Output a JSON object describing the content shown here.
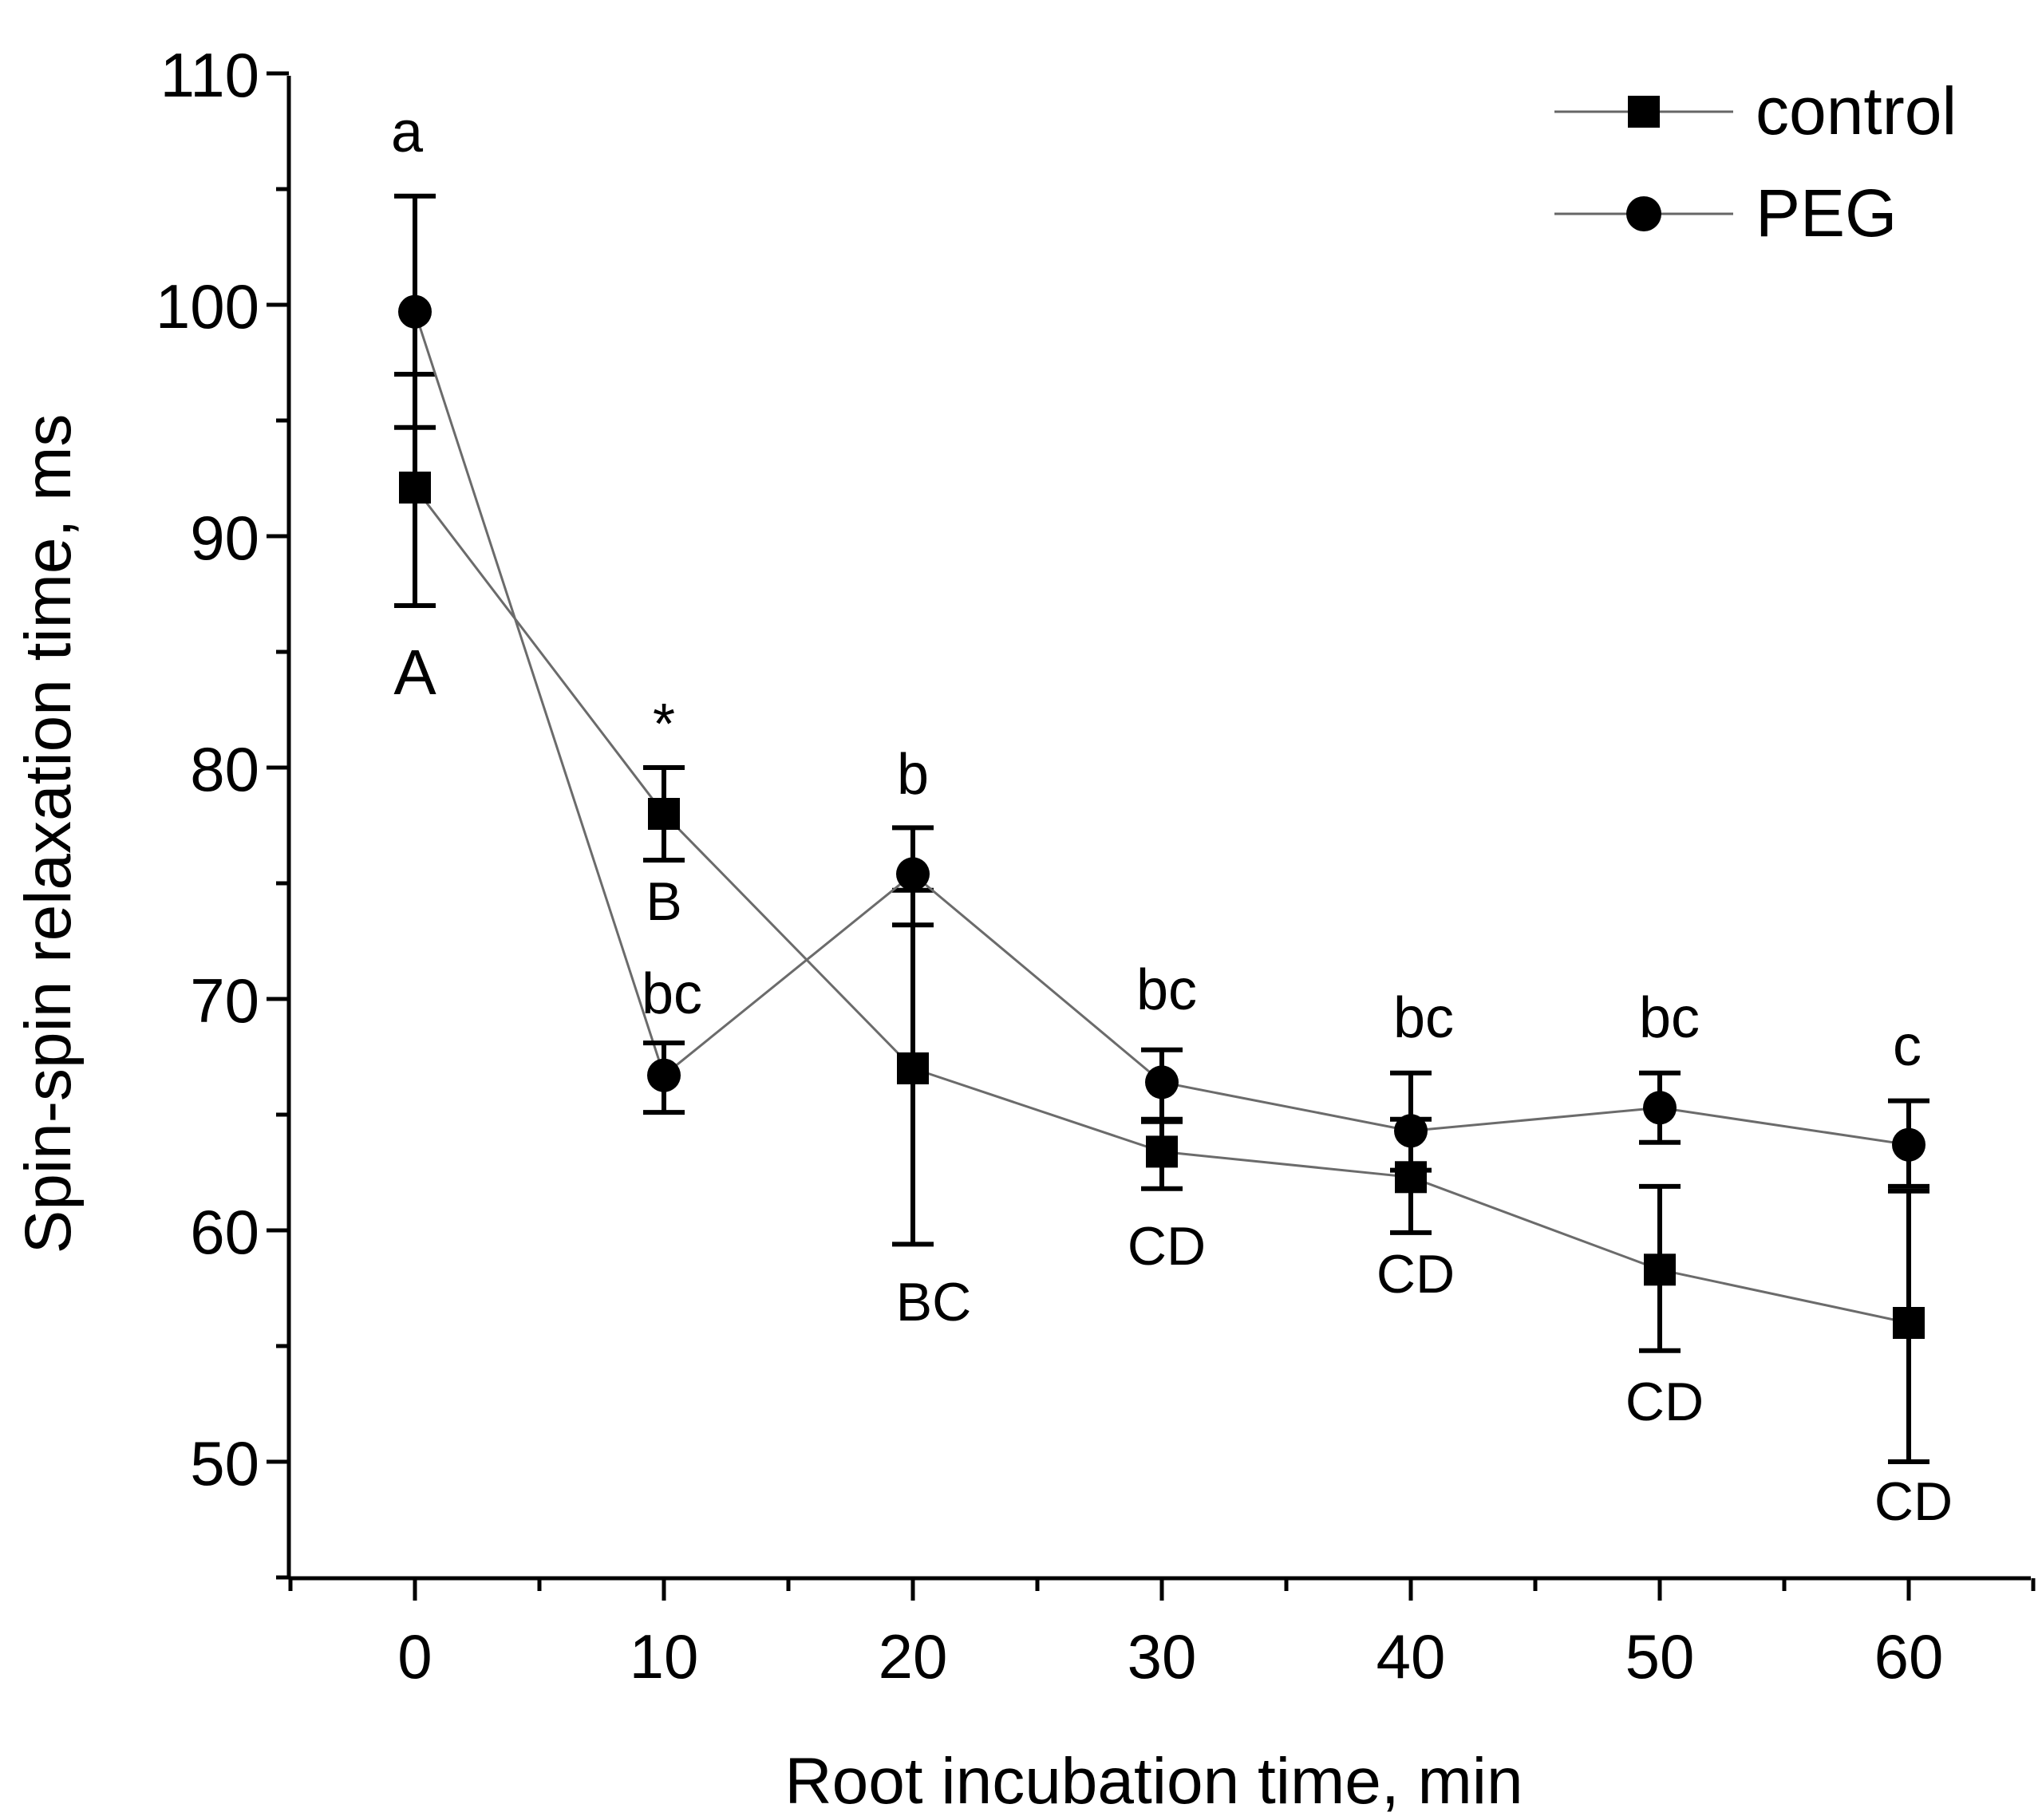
{
  "chart_data": {
    "type": "line",
    "title": "",
    "xlabel": "Root incubation time, min",
    "ylabel": "Spin-spin relaxation time, ms",
    "xlim": [
      -5,
      65
    ],
    "ylim": [
      45,
      110
    ],
    "x_ticks": [
      0,
      10,
      20,
      30,
      40,
      50,
      60
    ],
    "y_ticks": [
      50,
      60,
      70,
      80,
      90,
      100,
      110
    ],
    "legend_position": "top-right",
    "series": [
      {
        "name": "control",
        "marker": "square",
        "x": [
          0,
          10,
          20,
          30,
          40,
          50,
          60
        ],
        "y": [
          92.1,
          78.0,
          67.0,
          63.4,
          62.3,
          58.3,
          56.0
        ],
        "err_low": [
          87.0,
          76.0,
          59.4,
          61.8,
          59.9,
          54.8,
          50.0
        ],
        "err_high": [
          97.0,
          80.0,
          74.7,
          64.8,
          64.8,
          61.9,
          61.7
        ]
      },
      {
        "name": "PEG",
        "marker": "circle",
        "x": [
          0,
          10,
          20,
          30,
          40,
          50,
          60
        ],
        "y": [
          99.7,
          66.7,
          75.4,
          66.4,
          64.3,
          65.3,
          63.7
        ],
        "err_low": [
          94.7,
          65.1,
          73.2,
          64.7,
          62.6,
          63.8,
          61.9
        ],
        "err_high": [
          104.7,
          68.1,
          77.4,
          67.8,
          66.8,
          66.8,
          65.6
        ]
      }
    ],
    "annotations_upper": [
      "a",
      "*",
      "bc",
      "b",
      "bc",
      "bc",
      "bc",
      "c"
    ],
    "annotations_lower": [
      "A",
      "B",
      "BC",
      "CD",
      "CD",
      "CD",
      "CD"
    ]
  }
}
